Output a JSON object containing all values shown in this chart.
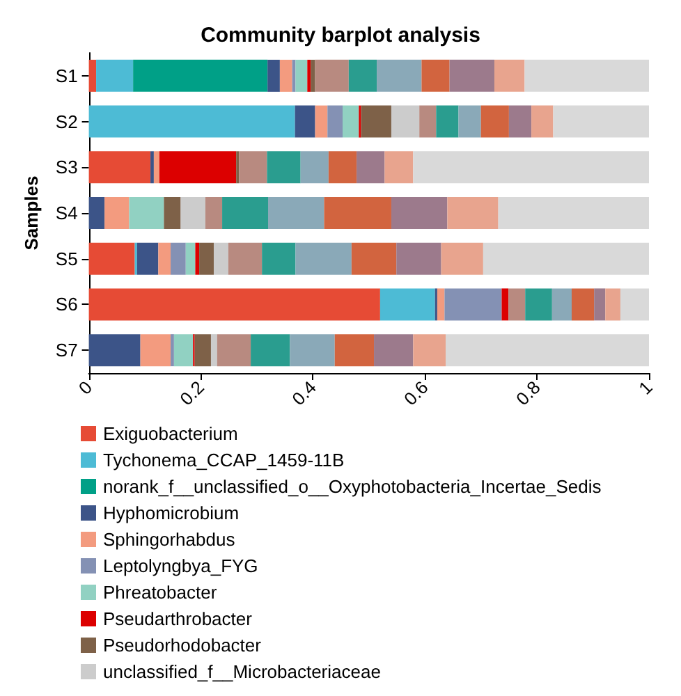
{
  "chart_data": {
    "type": "bar",
    "orientation": "horizontal",
    "stacked": true,
    "title": "Community barplot analysis",
    "ylabel": "Samples",
    "categories": [
      "S1",
      "S2",
      "S3",
      "S4",
      "S5",
      "S6",
      "S7"
    ],
    "xlim": [
      0,
      1
    ],
    "xticks": [
      0,
      0.2,
      0.4,
      0.6,
      0.8,
      1
    ],
    "grid": false,
    "legend": "bottom",
    "series": [
      {
        "name": "Exiguobacterium",
        "color": "#e64b35",
        "values": [
          0.013,
          0,
          0.11,
          0,
          0.082,
          0.52,
          0
        ]
      },
      {
        "name": "Tychonema_CCAP_1459-11B",
        "color": "#4dbbd5",
        "values": [
          0.066,
          0.368,
          0,
          0,
          0.004,
          0.098,
          0
        ]
      },
      {
        "name": "norank_f__unclassified_o__Oxyphotobacteria_Incertae_Sedis",
        "color": "#00a087",
        "values": [
          0.24,
          0,
          0,
          0,
          0,
          0,
          0
        ]
      },
      {
        "name": "Hyphomicrobium",
        "color": "#3c5488",
        "values": [
          0.022,
          0.036,
          0.006,
          0.028,
          0.038,
          0.004,
          0.092
        ]
      },
      {
        "name": "Sphingorhabdus",
        "color": "#f39b7f",
        "values": [
          0.022,
          0.022,
          0.01,
          0.044,
          0.022,
          0.013,
          0.054
        ]
      },
      {
        "name": "Leptolyngbya_FYG",
        "color": "#8491b4",
        "values": [
          0.006,
          0.027,
          0,
          0,
          0.027,
          0.102,
          0.006
        ]
      },
      {
        "name": "Phreatobacter",
        "color": "#91d1c2",
        "values": [
          0.021,
          0.029,
          0,
          0.062,
          0.017,
          0,
          0.034
        ]
      },
      {
        "name": "Pseudarthrobacter",
        "color": "#dc0000",
        "values": [
          0.006,
          0.004,
          0.137,
          0,
          0.007,
          0.012,
          0.003
        ]
      },
      {
        "name": "Pseudorhodobacter",
        "color": "#7e6148",
        "values": [
          0.008,
          0.054,
          0.005,
          0.03,
          0.026,
          0,
          0.029
        ]
      },
      {
        "name": "unclassified_f__Microbacteriaceae",
        "color": "#cccccc",
        "values": [
          null,
          0.05,
          null,
          0.044,
          0.026,
          0,
          0.011
        ]
      },
      {
        "color": "#b88a80",
        "values": [
          0.06,
          0.03,
          0.05,
          0.03,
          0.06,
          0.03,
          0.06
        ]
      },
      {
        "color": "#2a9d8f",
        "values": [
          0.05,
          0.04,
          0.06,
          0.082,
          0.06,
          0.048,
          0.07
        ]
      },
      {
        "color": "#8aa9b8",
        "values": [
          0.08,
          0.04,
          0.05,
          0.1,
          0.1,
          0.035,
          0.08
        ]
      },
      {
        "color": "#d2643f",
        "values": [
          0.05,
          0.05,
          0.05,
          0.12,
          0.08,
          0.04,
          0.07
        ]
      },
      {
        "color": "#9c7a8c",
        "values": [
          0.08,
          0.04,
          0.05,
          0.1,
          0.08,
          0.02,
          0.07
        ]
      },
      {
        "color": "#e8a48e",
        "values": [
          0.054,
          0.039,
          0.051,
          0.091,
          0.075,
          0.027,
          0.058
        ]
      },
      {
        "color": "#d9d9d9",
        "values": [
          0.222,
          0.171,
          0.421,
          0.269,
          0.296,
          0.051,
          0.363
        ]
      }
    ]
  }
}
